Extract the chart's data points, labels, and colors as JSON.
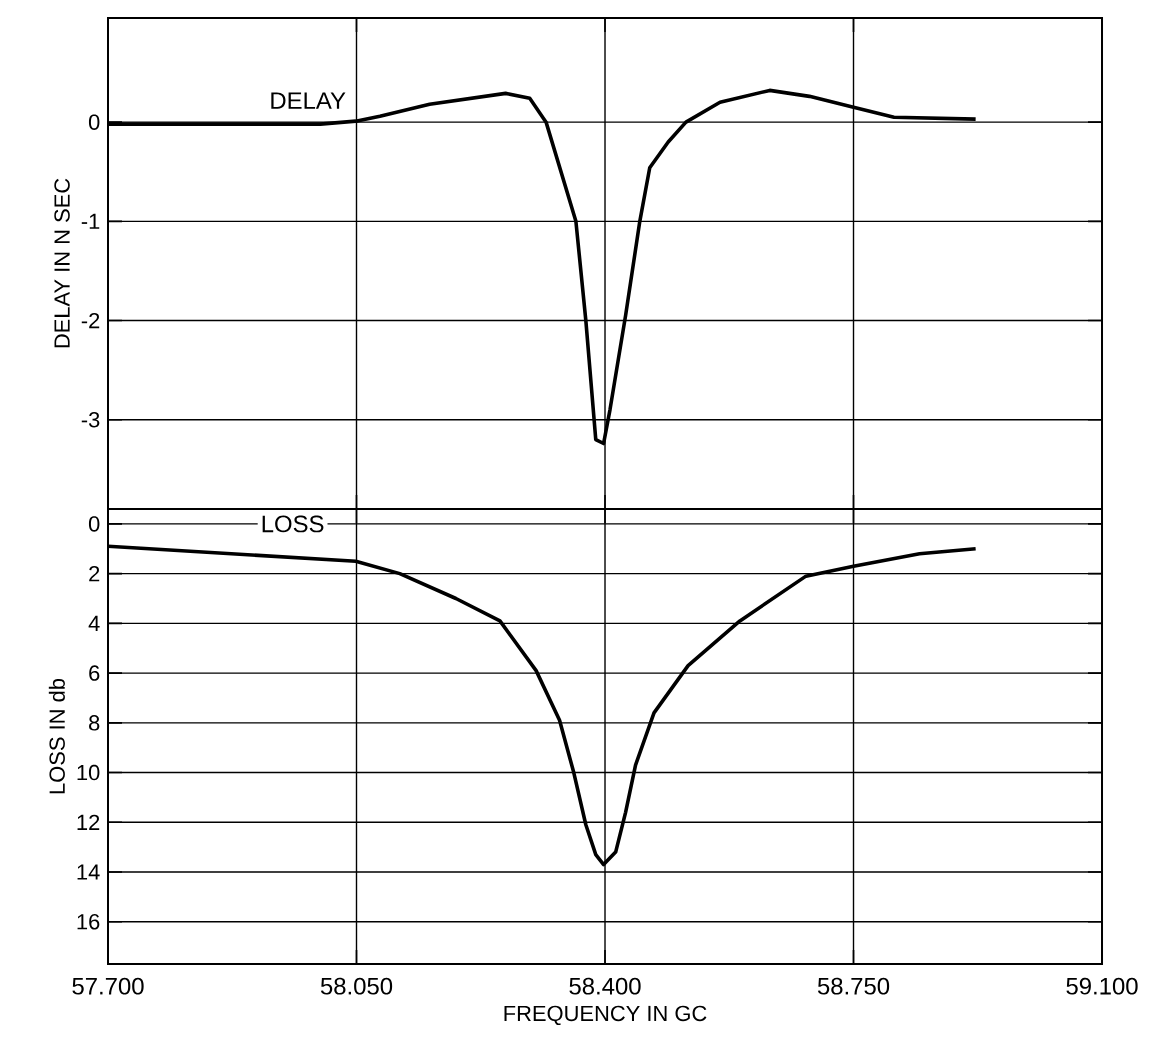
{
  "chart_data": [
    {
      "type": "line",
      "ylabel": "DELAY IN N SEC",
      "color": "#000000",
      "grid": true,
      "tick_labels": "y",
      "line_style": "solid",
      "xlim": [
        57.7,
        59.1
      ],
      "ylim": [
        -3.9,
        1.05
      ],
      "xticks": [
        {
          "value": 57.7,
          "label": null
        },
        {
          "value": 58.05,
          "label": null
        },
        {
          "value": 58.4,
          "label": null
        },
        {
          "value": 58.75,
          "label": null
        },
        {
          "value": 59.1,
          "label": null
        }
      ],
      "yticks": [
        0,
        -1,
        -2,
        -3
      ],
      "annotations": [
        {
          "text": "DELAY",
          "x": 58.04,
          "y": 0.1
        }
      ],
      "x": [
        57.7,
        57.999,
        58.049,
        58.083,
        58.153,
        58.26,
        58.294,
        58.317,
        58.359,
        58.373,
        58.387,
        58.398,
        58.407,
        58.429,
        58.449,
        58.463,
        58.489,
        58.514,
        58.562,
        58.632,
        58.688,
        58.75,
        58.807,
        58.922
      ],
      "values": [
        -0.02,
        -0.02,
        0.01,
        0.06,
        0.18,
        0.29,
        0.24,
        0,
        -1,
        -2,
        -3.2,
        -3.24,
        -2.9,
        -1.95,
        -1,
        -0.46,
        -0.2,
        0,
        0.2,
        0.32,
        0.26,
        0.15,
        0.05,
        0.03
      ]
    },
    {
      "type": "line",
      "xlabel": "FREQUENCY IN GC",
      "ylabel": "LOSS IN db",
      "color": "#000000",
      "grid": true,
      "line_style": "solid",
      "xlim": [
        57.7,
        59.1
      ],
      "ylim": [
        17.7,
        -0.6
      ],
      "xticks": [
        {
          "value": 57.7,
          "label": "57.700"
        },
        {
          "value": 58.05,
          "label": "58.050"
        },
        {
          "value": 58.4,
          "label": "58.400"
        },
        {
          "value": 58.75,
          "label": "58.750"
        },
        {
          "value": 59.1,
          "label": "59.100"
        }
      ],
      "yticks": [
        0,
        2,
        4,
        6,
        8,
        10,
        12,
        14,
        16
      ],
      "annotations": [
        {
          "text": "LOSS",
          "x": 57.96,
          "y": 0
        }
      ],
      "x": [
        57.7,
        58.049,
        58.111,
        58.19,
        58.252,
        58.303,
        58.336,
        58.356,
        58.373,
        58.387,
        58.398,
        58.415,
        58.429,
        58.443,
        58.469,
        58.517,
        58.59,
        58.683,
        58.75,
        58.843,
        58.922
      ],
      "values": [
        0.9,
        1.5,
        2.0,
        3.0,
        3.9,
        5.9,
        7.9,
        10.0,
        12.1,
        13.3,
        13.7,
        13.2,
        11.6,
        9.7,
        7.6,
        5.7,
        3.9,
        2.1,
        1.7,
        1.2,
        1.0
      ]
    }
  ]
}
